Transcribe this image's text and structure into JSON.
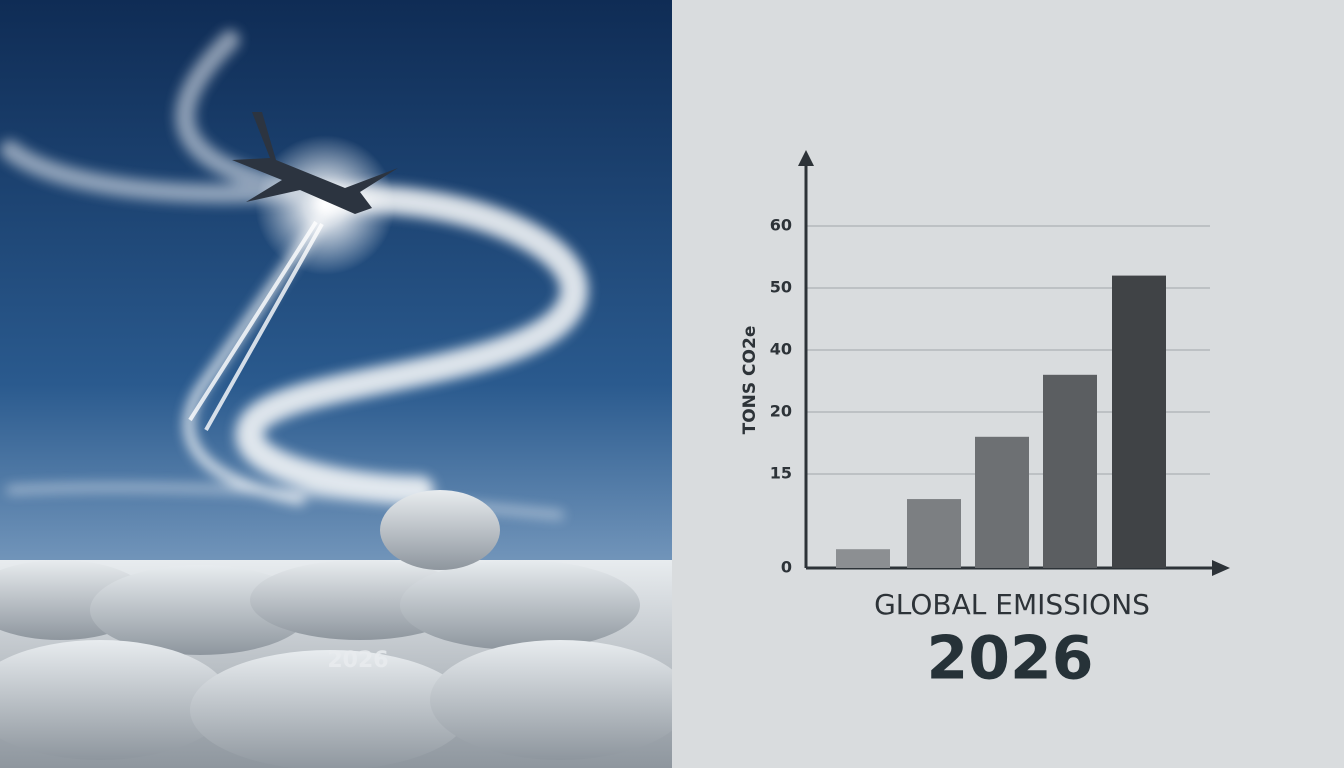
{
  "photo": {
    "caption": "2026"
  },
  "chart_data": {
    "type": "bar",
    "title": "GLOBAL EMISSIONS",
    "subtitle": "2026",
    "y_label": "TONS CO2e",
    "categories": [
      null,
      null,
      null,
      null,
      null
    ],
    "values": [
      3,
      11,
      18,
      32,
      52
    ],
    "colors": [
      "#8c8f92",
      "#7c7f82",
      "#6d7073",
      "#5b5e61",
      "#404346"
    ],
    "ylim": [
      0,
      60
    ],
    "yticks": [
      0,
      15,
      20,
      40,
      50,
      60
    ],
    "grid": true
  }
}
